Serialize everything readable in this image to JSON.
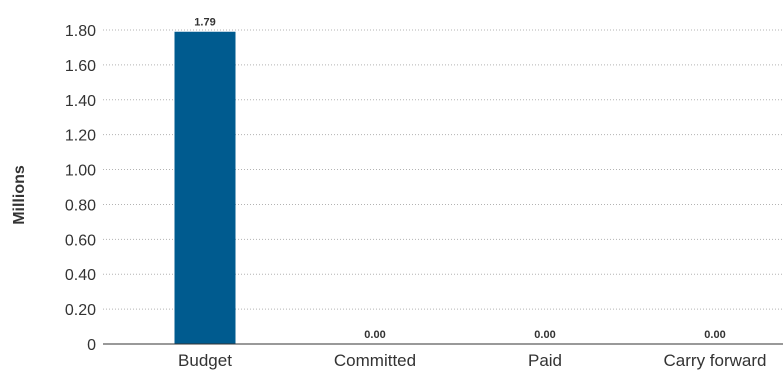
{
  "chart_data": {
    "type": "bar",
    "categories": [
      "Budget",
      "Committed",
      "Paid",
      "Carry forward"
    ],
    "values": [
      1.79,
      0.0,
      0.0,
      0.0
    ],
    "data_labels": [
      "1.79",
      "0.00",
      "0.00",
      "0.00"
    ],
    "title": "",
    "xlabel": "",
    "ylabel": "Millions",
    "ylim": [
      0,
      1.8
    ],
    "yticks": [
      0,
      0.2,
      0.4,
      0.6,
      0.8,
      1.0,
      1.2,
      1.4,
      1.6,
      1.8
    ],
    "ytick_labels": [
      "0",
      "0.20",
      "0.40",
      "0.60",
      "0.80",
      "1.00",
      "1.20",
      "1.40",
      "1.60",
      "1.80"
    ],
    "grid": true,
    "grid_style": "dotted",
    "legend": "none",
    "bar_color": "#005b8f"
  }
}
